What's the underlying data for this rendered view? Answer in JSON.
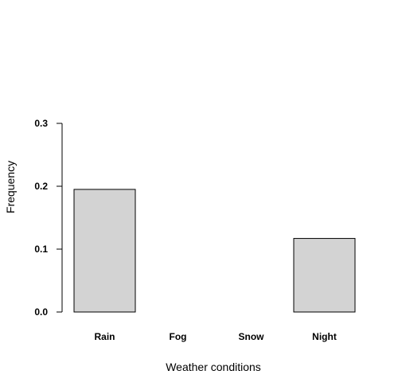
{
  "chart_data": {
    "type": "bar",
    "title": "",
    "xlabel": "Weather conditions",
    "ylabel": "Frequency",
    "categories": [
      "Rain",
      "Fog",
      "Snow",
      "Night"
    ],
    "values": [
      0.195,
      0.0,
      0.0,
      0.117
    ],
    "ylim": [
      0,
      0.3
    ],
    "yticks": [
      0.0,
      0.1,
      0.2,
      0.3
    ],
    "ytick_labels": [
      "0.0",
      "0.1",
      "0.2",
      "0.3"
    ],
    "grid": false,
    "legend": "none",
    "bar_color": "#d3d3d3",
    "bar_edge_color": "#000000"
  }
}
